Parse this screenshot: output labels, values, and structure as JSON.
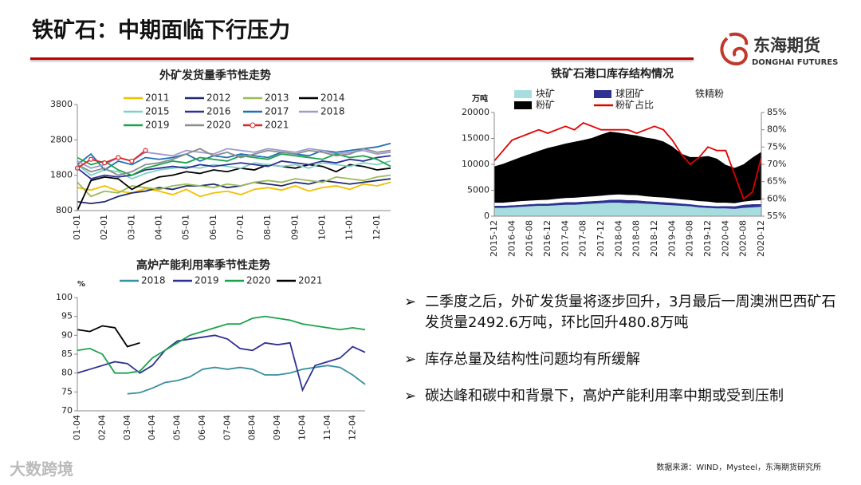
{
  "title": "铁矿石：中期面临下行压力",
  "logo": {
    "name": "东海期货",
    "name_en": "DONGHAI FUTURES"
  },
  "chart_data": [
    {
      "type": "line",
      "title": "外矿发货量季节性走势",
      "categories": [
        "01-01",
        null,
        "02-01",
        null,
        "03-01",
        null,
        "04-01",
        null,
        "05-01",
        null,
        "06-01",
        null,
        "07-01",
        null,
        "08-01",
        null,
        "09-01",
        null,
        "10-01",
        null,
        "11-01",
        null,
        "12-01",
        null
      ],
      "ylim": [
        800,
        3800
      ],
      "yticks": [
        800,
        1800,
        2800,
        3800
      ],
      "grid": false,
      "series": [
        {
          "name": "2011",
          "color": "#f0c000",
          "values": [
            1450,
            1380,
            1500,
            1350,
            1300,
            1420,
            1350,
            1250,
            1400,
            1200,
            1300,
            1350,
            1250,
            1400,
            1450,
            1380,
            1500,
            1350,
            1450,
            1500,
            1400,
            1550,
            1500,
            1600
          ]
        },
        {
          "name": "2012",
          "color": "#1f2a6e",
          "values": [
            1050,
            1000,
            1050,
            1200,
            1300,
            1350,
            1450,
            1400,
            1500,
            1500,
            1550,
            1450,
            1500,
            1600,
            1550,
            1500,
            1600,
            1550,
            1650,
            1600,
            1550,
            1600,
            1650,
            1700
          ]
        },
        {
          "name": "2013",
          "color": "#9bbb59",
          "values": [
            1600,
            1200,
            1350,
            1300,
            1500,
            1450,
            1400,
            1500,
            1550,
            1500,
            1450,
            1550,
            1500,
            1600,
            1650,
            1600,
            1700,
            1650,
            1600,
            1750,
            1700,
            1650,
            1750,
            1800
          ]
        },
        {
          "name": "2014",
          "color": "#000000",
          "values": [
            800,
            1650,
            1750,
            1700,
            1400,
            1600,
            1750,
            1800,
            1900,
            1850,
            1950,
            1900,
            2000,
            1950,
            2100,
            2050,
            2000,
            2100,
            2050,
            1900,
            2100,
            2050,
            1950,
            2000
          ]
        },
        {
          "name": "2015",
          "color": "#7fd1c7",
          "values": [
            2100,
            1800,
            1950,
            1900,
            1700,
            1850,
            1950,
            2000,
            2050,
            2000,
            2100,
            2050,
            2000,
            2150,
            2100,
            2050,
            2100,
            2000,
            2150,
            2100,
            2050,
            2150,
            2100,
            2200
          ]
        },
        {
          "name": "2016",
          "color": "#2e3192",
          "values": [
            2000,
            1700,
            1800,
            1750,
            1800,
            1950,
            2000,
            2050,
            2000,
            2100,
            2050,
            2100,
            2150,
            2100,
            2050,
            2200,
            2150,
            2100,
            2200,
            2150,
            2250,
            2200,
            2300,
            2350
          ]
        },
        {
          "name": "2017",
          "color": "#1f6fb5",
          "values": [
            2100,
            2400,
            1950,
            2200,
            2100,
            2300,
            2250,
            2300,
            2400,
            2200,
            2350,
            2300,
            2400,
            2350,
            2300,
            2450,
            2400,
            2350,
            2500,
            2450,
            2500,
            2550,
            2600,
            2700
          ]
        },
        {
          "name": "2018",
          "color": "#9b9bd0",
          "values": [
            2200,
            2000,
            2100,
            2300,
            2200,
            2450,
            2400,
            2350,
            2500,
            2450,
            2400,
            2550,
            2500,
            2450,
            2550,
            2500,
            2450,
            2550,
            2500,
            2400,
            2450,
            2500,
            2400,
            2450
          ]
        },
        {
          "name": "2019",
          "color": "#1aa34a",
          "values": [
            2300,
            2100,
            2200,
            1950,
            1800,
            2000,
            2100,
            2200,
            2150,
            2300,
            2250,
            2200,
            2350,
            2300,
            2250,
            2400,
            2350,
            2300,
            2250,
            2400,
            2300,
            2350,
            2250,
            2050
          ]
        },
        {
          "name": "2020",
          "color": "#8c8c8c",
          "values": [
            2100,
            1900,
            2000,
            1800,
            1900,
            2100,
            2150,
            2250,
            2400,
            2550,
            2350,
            2450,
            2300,
            2400,
            2500,
            2450,
            2400,
            2500,
            2450,
            2350,
            2400,
            2550,
            2450,
            2500
          ]
        },
        {
          "name": "2021",
          "color": "#d62728",
          "marker": true,
          "values": [
            2000,
            2250,
            2150,
            2300,
            2200,
            2500,
            null,
            null,
            null,
            null,
            null,
            null,
            null,
            null,
            null,
            null,
            null,
            null,
            null,
            null,
            null,
            null,
            null,
            null
          ]
        }
      ]
    },
    {
      "type": "area",
      "stacked": true,
      "title": "铁矿石港口库存结构情况",
      "y_label": "万吨",
      "categories": [
        "2015-12",
        null,
        "2016-04",
        null,
        "2016-08",
        null,
        "2016-12",
        null,
        "2017-04",
        null,
        "2017-08",
        null,
        "2017-12",
        null,
        "2018-04",
        null,
        "2018-08",
        null,
        "2018-12",
        null,
        "2019-04",
        null,
        "2019-08",
        null,
        "2019-12",
        null,
        "2020-04",
        null,
        "2020-08",
        null,
        "2020-12"
      ],
      "ylim": [
        0,
        20000
      ],
      "yticks": [
        0,
        5000,
        10000,
        15000,
        20000
      ],
      "y2lim": [
        55,
        85
      ],
      "y2ticks": [
        {
          "value": 55,
          "label": "55%"
        },
        {
          "value": 60,
          "label": "60%"
        },
        {
          "value": 65,
          "label": "65%"
        },
        {
          "value": 70,
          "label": "70%"
        },
        {
          "value": 75,
          "label": "75%"
        },
        {
          "value": 80,
          "label": "80%"
        },
        {
          "value": 85,
          "label": "85%"
        }
      ],
      "grid": false,
      "series": [
        {
          "name": "块矿",
          "color": "#a8dde0",
          "values": [
            1600,
            1600,
            1700,
            1800,
            1900,
            2000,
            2000,
            2100,
            2200,
            2200,
            2300,
            2400,
            2500,
            2600,
            2600,
            2500,
            2500,
            2400,
            2300,
            2200,
            2100,
            2000,
            1900,
            1700,
            1600,
            1500,
            1500,
            1400,
            1600,
            1700,
            1800
          ]
        },
        {
          "name": "球团矿",
          "color": "#2e3192",
          "values": [
            400,
            400,
            400,
            400,
            400,
            400,
            400,
            450,
            500,
            500,
            500,
            500,
            500,
            550,
            600,
            600,
            550,
            500,
            500,
            500,
            500,
            450,
            400,
            400,
            400,
            400,
            450,
            500,
            600,
            600,
            500
          ]
        },
        {
          "name": "铁精粉",
          "color": "#ffffff",
          "values": [
            600,
            600,
            650,
            700,
            700,
            700,
            750,
            800,
            800,
            850,
            900,
            900,
            950,
            950,
            1000,
            1000,
            1000,
            950,
            900,
            900,
            850,
            800,
            800,
            800,
            800,
            700,
            650,
            600,
            600,
            700,
            800
          ]
        },
        {
          "name": "粉矿",
          "color": "#000000",
          "values": [
            7000,
            7500,
            8000,
            8500,
            9000,
            9500,
            10000,
            10200,
            10500,
            10800,
            11000,
            11300,
            11800,
            12200,
            11900,
            11700,
            11500,
            11300,
            11200,
            10800,
            10000,
            8800,
            8300,
            8500,
            8800,
            8500,
            7300,
            6800,
            7200,
            8300,
            9300
          ]
        },
        {
          "name": "粉矿占比",
          "color": "#e00000",
          "axis": "y2",
          "values": [
            71,
            74,
            77,
            78,
            79,
            80,
            79,
            80,
            81,
            80,
            82,
            81,
            80,
            80,
            80,
            80,
            79,
            80,
            81,
            80,
            77,
            73,
            70,
            72,
            75,
            74,
            74,
            67,
            60,
            62,
            72
          ]
        }
      ]
    },
    {
      "type": "line",
      "title": "高炉产能利用率季节性走势",
      "y_label": "%",
      "categories": [
        "01-04",
        null,
        "02-04",
        null,
        "03-04",
        null,
        "04-04",
        null,
        "05-04",
        null,
        "06-04",
        null,
        "07-04",
        null,
        "08-04",
        null,
        "09-04",
        null,
        "10-04",
        null,
        "11-04",
        null,
        "12-04",
        null
      ],
      "ylim": [
        70,
        100
      ],
      "yticks": [
        70,
        75,
        80,
        85,
        90,
        95,
        100
      ],
      "grid": false,
      "series": [
        {
          "name": "2018",
          "color": "#3a8fa0",
          "values": [
            null,
            null,
            null,
            null,
            74.5,
            74.8,
            76,
            77.5,
            78,
            79,
            81,
            81.5,
            81,
            81.5,
            81,
            79.5,
            79.5,
            80,
            81,
            81.5,
            82,
            81.5,
            79.5,
            77
          ]
        },
        {
          "name": "2019",
          "color": "#2e3192",
          "values": [
            80,
            81,
            82,
            83,
            82.5,
            80,
            82,
            86,
            88.5,
            89,
            89.5,
            90,
            89,
            86.5,
            86,
            88,
            87.5,
            88,
            75.5,
            82,
            83,
            84,
            87,
            85.5
          ]
        },
        {
          "name": "2020",
          "color": "#1aa34a",
          "values": [
            86,
            86.5,
            85,
            80,
            80,
            80.5,
            84,
            86,
            88,
            90,
            91,
            92,
            93,
            93,
            94.5,
            95,
            94.5,
            94,
            93,
            92.5,
            92,
            91.5,
            92,
            91.5
          ]
        },
        {
          "name": "2021",
          "color": "#000000",
          "values": [
            91.5,
            91,
            92.5,
            92,
            87,
            88,
            null,
            null,
            null,
            null,
            null,
            null,
            null,
            null,
            null,
            null,
            null,
            null,
            null,
            null,
            null,
            null,
            null,
            null
          ]
        }
      ]
    }
  ],
  "bullets": [
    "二季度之后，外矿发货量将逐步回升，3月最后一周澳洲巴西矿石发货量2492.6万吨，环比回升480.8万吨",
    "库存总量及结构性问题均有所缓解",
    "碳达峰和碳中和背景下，高炉产能利用率中期或受到压制"
  ],
  "source": "数据来源：WIND，Mysteel，东海期货研究所",
  "watermark": "大数跨境"
}
